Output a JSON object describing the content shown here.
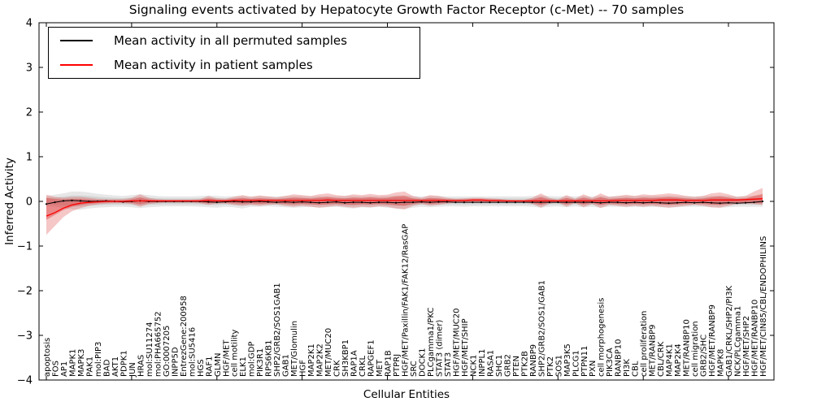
{
  "title": "Signaling events activated by Hepatocyte Growth Factor Receptor (c-Met) -- 70 samples",
  "axes": {
    "ylabel": "Inferred Activity",
    "xlabel": "Cellular Entities"
  },
  "legend": {
    "items": [
      {
        "label": "Mean activity in all permuted samples",
        "color": "#000000"
      },
      {
        "label": "Mean activity in patient samples",
        "color": "#ff0000"
      }
    ],
    "position": "upper left"
  },
  "colors": {
    "permuted_line": "#000000",
    "patient_line": "#ff0000",
    "permuted_band": "#a0a0a0",
    "patient_band": "#dd4444",
    "axis": "#000000"
  },
  "chart_data": {
    "type": "line",
    "title": "Signaling events activated by Hepatocyte Growth Factor Receptor (c-Met) -- 70 samples",
    "xlabel": "Cellular Entities",
    "ylabel": "Inferred Activity",
    "ylim": [
      -4,
      4
    ],
    "yticks": [
      -4,
      -3,
      -2,
      -1,
      0,
      1,
      2,
      3,
      4
    ],
    "grid": false,
    "legend_position": "upper left",
    "categories": [
      "apoptosis",
      "FOS",
      "AP1",
      "MAPK1",
      "MAPK3",
      "PAK1",
      "mol:PIP3",
      "BAD",
      "AKT1",
      "PDPK1",
      "JUN",
      "HRAS",
      "mol:SU11274",
      "mol:PHA665752",
      "GO:0007205",
      "INPP5D",
      "EntrezGene:200958",
      "mol:SU5416",
      "HGS",
      "RAF1",
      "GLMN",
      "HGF/MET",
      "cell motility",
      "ELK1",
      "mol:GDP",
      "PIK3R1",
      "RPS6KB1",
      "SHP2/GRB2/SOS1GAB1",
      "GAB1",
      "MET/Glomulin",
      "HGF",
      "MAP2K1",
      "MAP2K2",
      "MET/MUC20",
      "CRK",
      "SH3KBP1",
      "RAP1A",
      "CRKL",
      "RAPGEF1",
      "MET",
      "RAP1B",
      "PTPRJ",
      "HGF/MET/Paxillin/FAK1/FAK12/RasGAP",
      "SRC",
      "DOCK1",
      "PLCgamma1/PKC",
      "STAT3 (dimer)",
      "STAT3",
      "HGF/MET/MUC20",
      "HGF/MET/SHIP",
      "NCK1",
      "INPPL1",
      "RASA1",
      "SHC1",
      "GRB2",
      "PTEN",
      "PTK2B",
      "RANBP9",
      "SHP2/GRB2/SOS1/GAB1",
      "PTK2",
      "SOS1",
      "MAP3K5",
      "PLCG1",
      "PTPN11",
      "PXN",
      "cell morphogenesis",
      "PIK3CA",
      "RANBP10",
      "PI3K",
      "CBL",
      "cell proliferation",
      "MET/RANBP9",
      "CBL/CRK",
      "MAP4K1",
      "MAP2K4",
      "MET/RANBP10",
      "cell migration",
      "GRB2/SHC",
      "HGF/MET/RANBP9",
      "MAPK8",
      "GAB1/CRKL/SHP2/PI3K",
      "NCK/PLCgamma1",
      "HGF/MET/SHP2",
      "HGF/MET/RANBP10",
      "HGF/MET/CIN85/CBL/ENDOPHILINS"
    ],
    "series": [
      {
        "name": "Mean activity in all permuted samples",
        "color": "#000000",
        "values": [
          -0.06,
          -0.02,
          0.01,
          0.02,
          0.01,
          0.0,
          0.0,
          0.01,
          0.0,
          -0.01,
          0.0,
          0.01,
          0.0,
          0.0,
          0.0,
          0.0,
          0.0,
          0.0,
          0.0,
          -0.01,
          -0.02,
          -0.01,
          0.0,
          -0.01,
          -0.01,
          0.0,
          -0.01,
          -0.02,
          -0.01,
          -0.02,
          -0.01,
          -0.02,
          -0.03,
          -0.02,
          -0.01,
          -0.03,
          -0.02,
          -0.02,
          -0.03,
          -0.02,
          -0.02,
          -0.03,
          -0.02,
          -0.02,
          -0.01,
          -0.02,
          -0.01,
          -0.01,
          -0.02,
          -0.02,
          -0.02,
          -0.02,
          -0.02,
          -0.02,
          -0.02,
          -0.02,
          -0.02,
          -0.02,
          -0.02,
          -0.02,
          -0.02,
          -0.02,
          -0.02,
          -0.02,
          -0.02,
          -0.03,
          -0.02,
          -0.02,
          -0.03,
          -0.02,
          -0.03,
          -0.02,
          -0.03,
          -0.04,
          -0.03,
          -0.02,
          -0.03,
          -0.02,
          -0.03,
          -0.04,
          -0.03,
          -0.04,
          -0.03,
          -0.02,
          0.0
        ],
        "band_upper": [
          0.12,
          0.15,
          0.18,
          0.22,
          0.22,
          0.2,
          0.17,
          0.15,
          0.13,
          0.12,
          0.14,
          0.16,
          0.14,
          0.12,
          0.11,
          0.11,
          0.11,
          0.11,
          0.12,
          0.13,
          0.12,
          0.11,
          0.12,
          0.12,
          0.11,
          0.12,
          0.11,
          0.11,
          0.12,
          0.12,
          0.12,
          0.11,
          0.12,
          0.12,
          0.11,
          0.12,
          0.12,
          0.11,
          0.12,
          0.11,
          0.12,
          0.13,
          0.13,
          0.12,
          0.11,
          0.12,
          0.12,
          0.11,
          0.11,
          0.11,
          0.11,
          0.11,
          0.11,
          0.11,
          0.11,
          0.11,
          0.11,
          0.12,
          0.13,
          0.12,
          0.11,
          0.12,
          0.11,
          0.12,
          0.11,
          0.12,
          0.11,
          0.12,
          0.12,
          0.12,
          0.12,
          0.12,
          0.12,
          0.13,
          0.12,
          0.12,
          0.11,
          0.12,
          0.12,
          0.13,
          0.12,
          0.11,
          0.12,
          0.12,
          0.12
        ],
        "band_lower": [
          -0.1,
          -0.12,
          -0.15,
          -0.18,
          -0.19,
          -0.16,
          -0.14,
          -0.13,
          -0.12,
          -0.12,
          -0.13,
          -0.15,
          -0.13,
          -0.12,
          -0.11,
          -0.11,
          -0.11,
          -0.11,
          -0.12,
          -0.13,
          -0.14,
          -0.12,
          -0.13,
          -0.16,
          -0.12,
          -0.12,
          -0.11,
          -0.12,
          -0.13,
          -0.14,
          -0.13,
          -0.12,
          -0.14,
          -0.13,
          -0.12,
          -0.14,
          -0.16,
          -0.13,
          -0.14,
          -0.12,
          -0.14,
          -0.16,
          -0.17,
          -0.14,
          -0.12,
          -0.13,
          -0.12,
          -0.11,
          -0.11,
          -0.12,
          -0.11,
          -0.11,
          -0.11,
          -0.11,
          -0.11,
          -0.11,
          -0.11,
          -0.12,
          -0.14,
          -0.12,
          -0.11,
          -0.13,
          -0.11,
          -0.13,
          -0.12,
          -0.14,
          -0.12,
          -0.12,
          -0.13,
          -0.12,
          -0.13,
          -0.12,
          -0.13,
          -0.14,
          -0.13,
          -0.12,
          -0.12,
          -0.12,
          -0.13,
          -0.14,
          -0.13,
          -0.12,
          -0.12,
          -0.12,
          -0.12
        ]
      },
      {
        "name": "Mean activity in patient samples",
        "color": "#ff0000",
        "values": [
          -0.33,
          -0.25,
          -0.15,
          -0.08,
          -0.04,
          -0.02,
          -0.01,
          0.0,
          0.0,
          0.0,
          0.01,
          0.01,
          0.01,
          0.01,
          0.01,
          0.01,
          0.01,
          0.01,
          0.01,
          0.02,
          0.01,
          0.01,
          0.02,
          0.02,
          0.02,
          0.02,
          0.02,
          0.02,
          0.02,
          0.02,
          0.02,
          0.02,
          0.02,
          0.03,
          0.02,
          0.02,
          0.02,
          0.02,
          0.02,
          0.02,
          0.02,
          0.02,
          0.02,
          0.02,
          0.02,
          0.02,
          0.02,
          0.02,
          0.02,
          0.02,
          0.03,
          0.03,
          0.02,
          0.02,
          0.01,
          0.01,
          0.01,
          0.01,
          0.01,
          0.01,
          0.01,
          0.01,
          0.01,
          0.01,
          0.01,
          0.01,
          0.01,
          0.02,
          0.02,
          0.02,
          0.02,
          0.02,
          0.03,
          0.03,
          0.03,
          0.02,
          0.02,
          0.02,
          0.03,
          0.03,
          0.03,
          0.03,
          0.04,
          0.05,
          0.06
        ],
        "band_upper": [
          0.15,
          0.1,
          0.08,
          0.1,
          0.1,
          0.08,
          0.06,
          0.05,
          0.05,
          0.05,
          0.08,
          0.16,
          0.08,
          0.05,
          0.04,
          0.04,
          0.04,
          0.04,
          0.05,
          0.12,
          0.07,
          0.06,
          0.1,
          0.14,
          0.1,
          0.13,
          0.11,
          0.09,
          0.12,
          0.16,
          0.14,
          0.12,
          0.16,
          0.18,
          0.14,
          0.12,
          0.16,
          0.14,
          0.17,
          0.14,
          0.15,
          0.2,
          0.22,
          0.12,
          0.08,
          0.14,
          0.12,
          0.08,
          0.06,
          0.07,
          0.08,
          0.08,
          0.07,
          0.06,
          0.04,
          0.03,
          0.03,
          0.08,
          0.18,
          0.08,
          0.04,
          0.14,
          0.06,
          0.16,
          0.08,
          0.18,
          0.1,
          0.12,
          0.15,
          0.12,
          0.16,
          0.14,
          0.16,
          0.18,
          0.16,
          0.12,
          0.1,
          0.12,
          0.18,
          0.2,
          0.16,
          0.1,
          0.12,
          0.22,
          0.3
        ],
        "band_lower": [
          -0.75,
          -0.55,
          -0.35,
          -0.22,
          -0.15,
          -0.1,
          -0.07,
          -0.05,
          -0.04,
          -0.04,
          -0.06,
          -0.12,
          -0.06,
          -0.04,
          -0.03,
          -0.03,
          -0.03,
          -0.03,
          -0.04,
          -0.08,
          -0.05,
          -0.05,
          -0.08,
          -0.1,
          -0.08,
          -0.1,
          -0.08,
          -0.07,
          -0.1,
          -0.12,
          -0.1,
          -0.12,
          -0.14,
          -0.12,
          -0.1,
          -0.12,
          -0.14,
          -0.12,
          -0.13,
          -0.11,
          -0.12,
          -0.16,
          -0.18,
          -0.1,
          -0.06,
          -0.1,
          -0.08,
          -0.05,
          -0.03,
          -0.02,
          -0.02,
          -0.02,
          -0.02,
          -0.02,
          -0.02,
          -0.02,
          -0.02,
          -0.06,
          -0.14,
          -0.05,
          -0.03,
          -0.12,
          -0.04,
          -0.13,
          -0.06,
          -0.15,
          -0.08,
          -0.1,
          -0.12,
          -0.1,
          -0.12,
          -0.1,
          -0.12,
          -0.14,
          -0.12,
          -0.1,
          -0.08,
          -0.1,
          -0.13,
          -0.14,
          -0.1,
          -0.06,
          -0.05,
          -0.06,
          -0.08
        ]
      }
    ]
  }
}
